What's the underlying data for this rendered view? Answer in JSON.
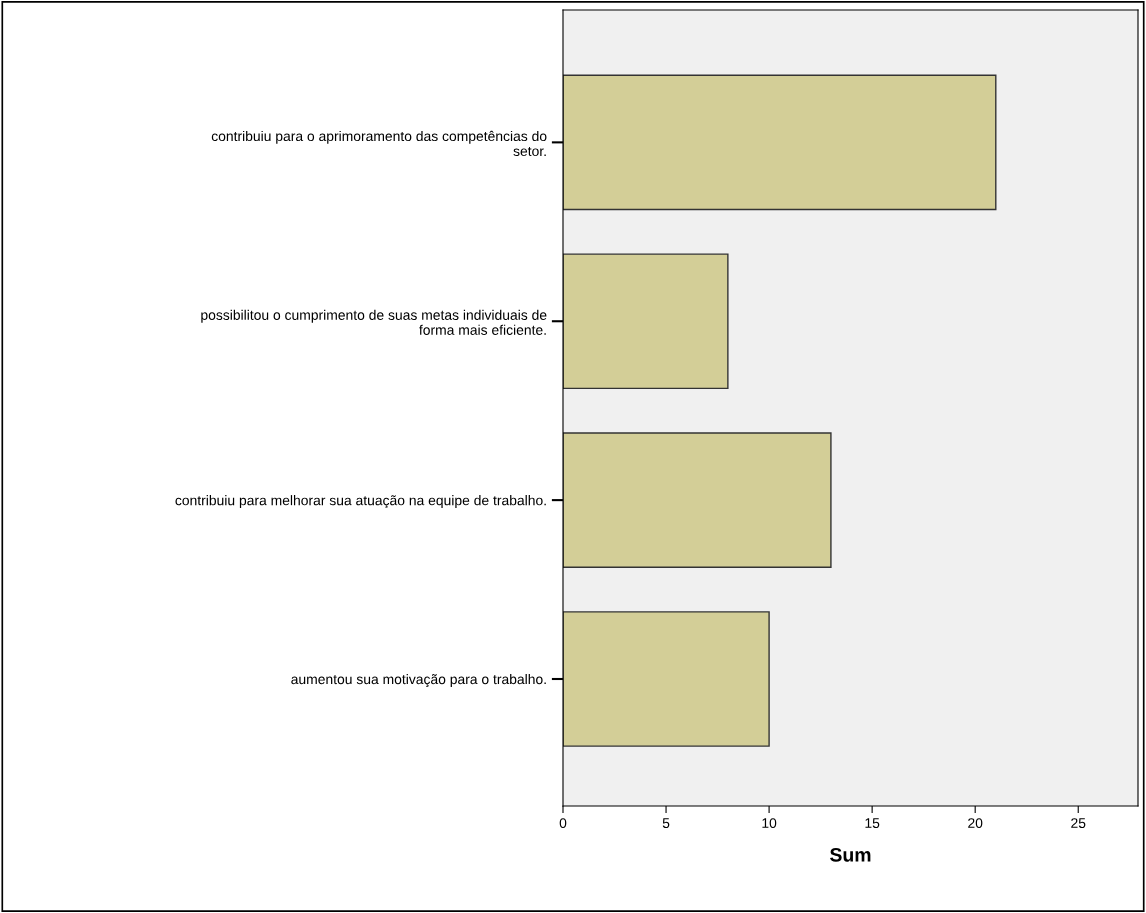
{
  "chart_data": {
    "type": "bar",
    "orientation": "horizontal",
    "xlabel": "Sum",
    "categories": [
      "contribuiu para o aprimoramento das competências do\nsetor.",
      "possibilitou o cumprimento de suas metas individuais de\nforma mais eficiente.",
      "contribuiu para melhorar sua atuação na equipe de trabalho.",
      "aumentou sua motivação para o trabalho."
    ],
    "values": [
      21,
      8,
      13,
      10
    ],
    "color": "#d3ce97",
    "xlim": [
      0,
      27.9
    ],
    "xticks": [
      0,
      5,
      10,
      15,
      20,
      25
    ],
    "grid": false,
    "legend": false
  }
}
